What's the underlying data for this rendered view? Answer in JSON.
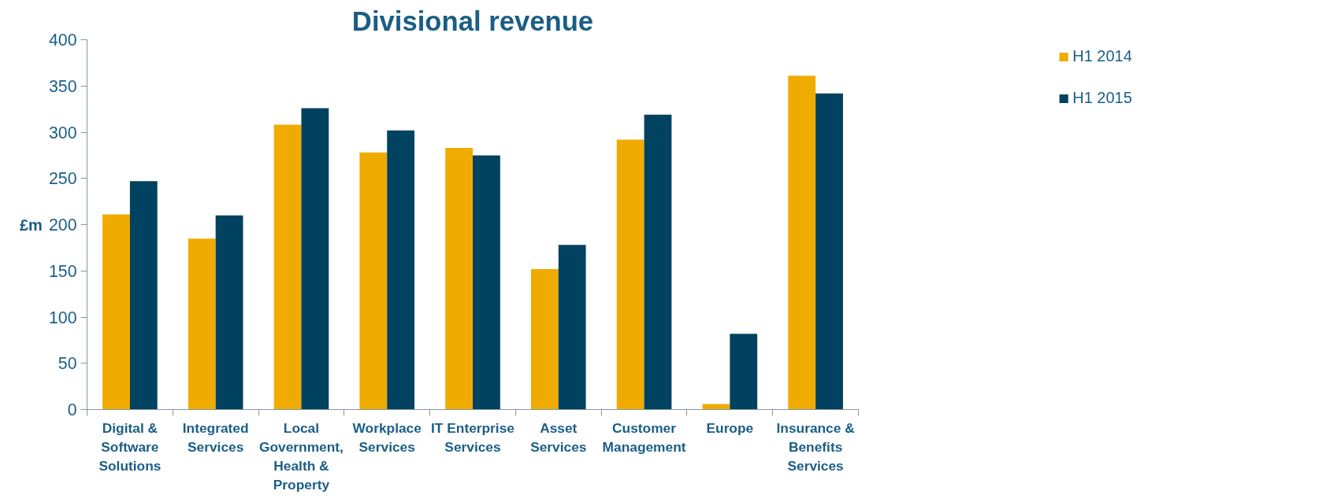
{
  "chart_data": {
    "type": "bar",
    "title": "Divisional revenue",
    "ylabel": "£m",
    "categories": [
      "Digital & Software Solutions",
      "Integrated Services",
      "Local Government, Health & Property",
      "Workplace Services",
      "IT Enterprise Services",
      "Asset Services",
      "Customer Management",
      "Europe",
      "Insurance & Benefits Services"
    ],
    "series": [
      {
        "name": "H1 2014",
        "color": "#f0ab00",
        "values": [
          211,
          185,
          308,
          278,
          283,
          152,
          292,
          6,
          361
        ]
      },
      {
        "name": "H1 2015",
        "color": "#00425f",
        "values": [
          247,
          210,
          326,
          302,
          275,
          178,
          319,
          82,
          342
        ]
      }
    ],
    "ylim": [
      0,
      400
    ],
    "yticks": [
      0,
      50,
      100,
      150,
      200,
      250,
      300,
      350,
      400
    ],
    "grid": false,
    "legend": "top right"
  }
}
